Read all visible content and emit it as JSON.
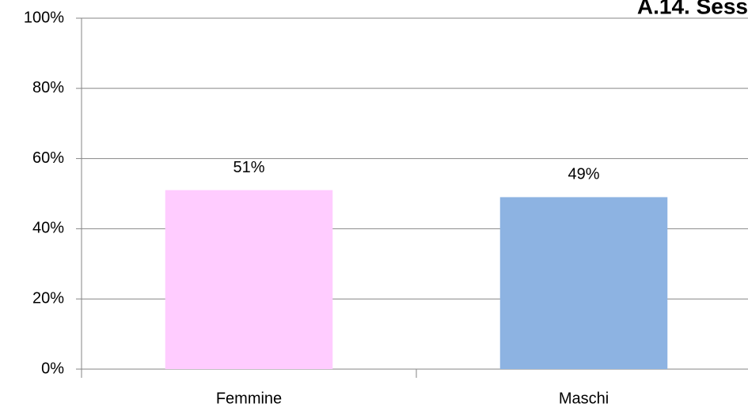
{
  "chart_data": {
    "type": "bar",
    "title": "A.14. Sess",
    "categories": [
      "Femmine",
      "Maschi"
    ],
    "values": [
      51,
      49
    ],
    "value_labels": [
      "51%",
      "49%"
    ],
    "colors": [
      "#ffccff",
      "#8db3e2"
    ],
    "ylim": [
      0,
      100
    ],
    "yticks": [
      {
        "value": 0,
        "label": "0%"
      },
      {
        "value": 20,
        "label": "20%"
      },
      {
        "value": 40,
        "label": "40%"
      },
      {
        "value": 60,
        "label": "60%"
      },
      {
        "value": 80,
        "label": "80%"
      },
      {
        "value": 100,
        "label": "100%"
      }
    ],
    "grid": true
  }
}
